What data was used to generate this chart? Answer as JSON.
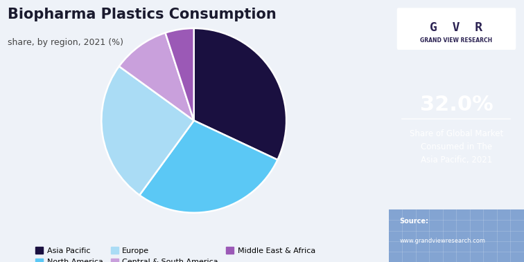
{
  "title": "Biopharma Plastics Consumption",
  "subtitle": "share, by region, 2021 (%)",
  "slices": [
    32.0,
    28.0,
    25.0,
    10.0,
    5.0
  ],
  "labels": [
    "Asia Pacific",
    "North America",
    "Europe",
    "Central & South America",
    "Middle East & Africa"
  ],
  "colors": [
    "#1a1040",
    "#5bc8f5",
    "#aadcf5",
    "#c9a0dc",
    "#9b59b6"
  ],
  "startangle": 90,
  "sidebar_bg": "#2b2252",
  "sidebar_highlight": "32.0%",
  "sidebar_text1": "Share of Global Market",
  "sidebar_text2": "Consumed in The",
  "sidebar_text3": "Asia Pacific, 2021",
  "main_bg": "#eef2f8",
  "title_fontsize": 15,
  "subtitle_fontsize": 9
}
